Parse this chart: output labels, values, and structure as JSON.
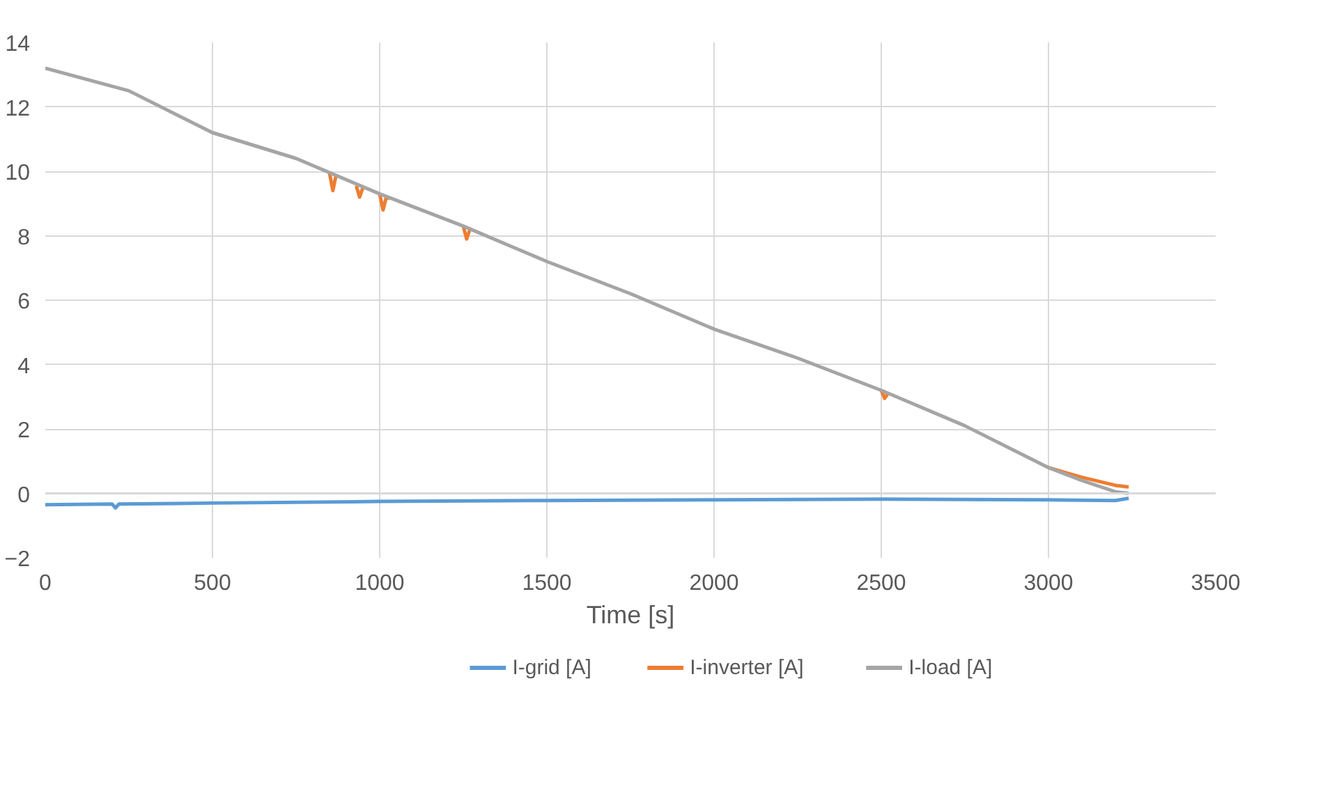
{
  "chart_data": {
    "type": "line",
    "xlabel": "Time [s]",
    "xlim": [
      0,
      3500
    ],
    "xticks": [
      0,
      500,
      1000,
      1500,
      2000,
      2500,
      3000,
      3500
    ],
    "ylim": [
      -2,
      14
    ],
    "yticks": [
      -2,
      0,
      2,
      4,
      6,
      8,
      10,
      12,
      14
    ],
    "grid": true,
    "legend": "bottom",
    "marker": "none",
    "line_style": "solid",
    "series": [
      {
        "name": "I-grid [A]",
        "color": "#5b9bd5",
        "x": [
          0,
          200,
          210,
          220,
          500,
          1000,
          1500,
          2000,
          2500,
          3000,
          3200,
          3240
        ],
        "values": [
          -0.35,
          -0.33,
          -0.45,
          -0.33,
          -0.3,
          -0.25,
          -0.22,
          -0.2,
          -0.18,
          -0.2,
          -0.22,
          -0.15
        ]
      },
      {
        "name": "I-inverter [A]",
        "color": "#ed7d31",
        "x": [
          850,
          860,
          870,
          900,
          930,
          940,
          950,
          980,
          1000,
          1010,
          1020,
          1030,
          1100,
          1250,
          1260,
          1270,
          1400,
          2500,
          2510,
          2520,
          2700,
          3000,
          3100,
          3200,
          3240
        ],
        "values": [
          9.95,
          9.4,
          9.9,
          null,
          9.55,
          9.2,
          9.5,
          null,
          9.3,
          8.8,
          9.2,
          9.15,
          null,
          8.3,
          7.9,
          8.2,
          null,
          3.2,
          2.95,
          3.1,
          null,
          0.8,
          0.5,
          0.25,
          0.2
        ]
      },
      {
        "name": "I-load [A]",
        "color": "#a5a5a5",
        "x": [
          0,
          250,
          500,
          750,
          1000,
          1250,
          1500,
          1750,
          2000,
          2250,
          2500,
          2750,
          3000,
          3100,
          3200,
          3240
        ],
        "values": [
          13.2,
          12.5,
          11.2,
          10.4,
          9.3,
          8.3,
          7.2,
          6.2,
          5.1,
          4.2,
          3.2,
          2.1,
          0.8,
          0.4,
          0.05,
          0.0
        ]
      }
    ]
  }
}
